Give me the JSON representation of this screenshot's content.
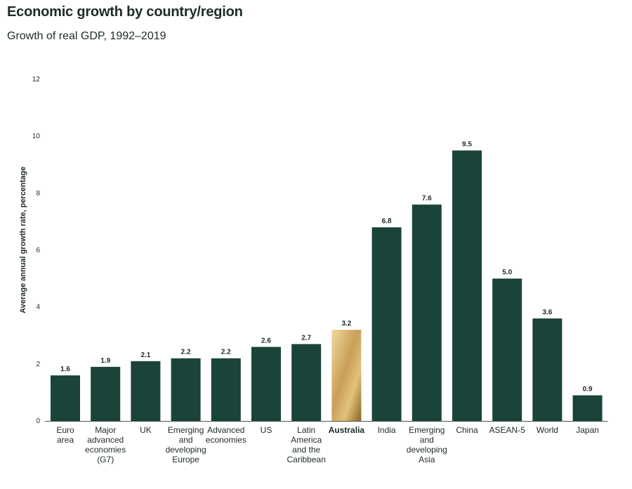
{
  "chart_data": {
    "type": "bar",
    "title": "Economic growth by country/region",
    "subtitle": "Growth of real GDP, 1992–2019",
    "ylabel": "Average annual growth rate, percentage",
    "xlabel": "",
    "ylim": [
      0,
      12
    ],
    "yticks": [
      0,
      2,
      4,
      6,
      8,
      10,
      12
    ],
    "grid": false,
    "categories": [
      [
        "Euro",
        "area"
      ],
      [
        "Major",
        "advanced",
        "economies",
        "(G7)"
      ],
      [
        "UK"
      ],
      [
        "Emerging",
        "and",
        "developing",
        "Europe"
      ],
      [
        "Advanced",
        "economies"
      ],
      [
        "US"
      ],
      [
        "Latin",
        "America",
        "and the",
        "Caribbean"
      ],
      [
        "Australia"
      ],
      [
        "India"
      ],
      [
        "Emerging",
        "and",
        "developing",
        "Asia"
      ],
      [
        "China"
      ],
      [
        "ASEAN-5"
      ],
      [
        "World"
      ],
      [
        "Japan"
      ]
    ],
    "values": [
      1.6,
      1.9,
      2.1,
      2.2,
      2.2,
      2.6,
      2.7,
      3.2,
      6.8,
      7.6,
      9.5,
      5.0,
      3.6,
      0.9
    ],
    "value_labels": [
      "1.6",
      "1.9",
      "2.1",
      "2.2",
      "2.2",
      "2.6",
      "2.7",
      "3.2",
      "6.8",
      "7.6",
      "9.5",
      "5.0",
      "3.6",
      "0.9"
    ],
    "highlight_index": 7,
    "colors": {
      "bar": "#1a4439",
      "highlight_light": "#f1d99c",
      "highlight_dark": "#8a6424",
      "text": "#1d2b28"
    }
  }
}
